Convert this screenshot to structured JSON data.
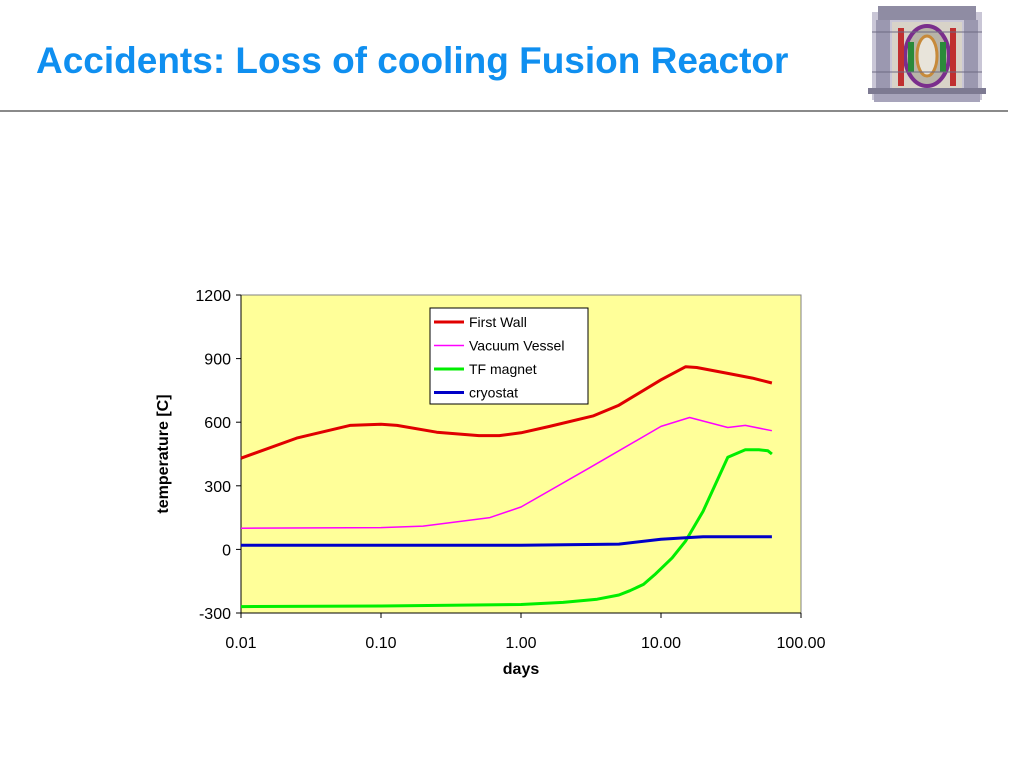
{
  "slide": {
    "title": "Accidents: Loss of cooling Fusion Reactor"
  },
  "image": {
    "icon": "fusion-reactor-cutaway-icon"
  },
  "colors": {
    "title": "#0f8ff0",
    "plot_background": "#ffff99",
    "rule": "#8a8a8a"
  },
  "chart_data": {
    "type": "line",
    "xlabel": "days",
    "ylabel": "temperature [C]",
    "x_scale": "log",
    "xlim": [
      0.01,
      100
    ],
    "ylim": [
      -300,
      1200
    ],
    "x_ticks": [
      0.01,
      0.1,
      1,
      10,
      100
    ],
    "x_tick_labels": [
      "0.01",
      "0.10",
      "1.00",
      "10.00",
      "100.00"
    ],
    "y_ticks": [
      -300,
      0,
      300,
      600,
      900,
      1200
    ],
    "y_tick_labels": [
      "-300",
      "0",
      "300",
      "600",
      "900",
      "1200"
    ],
    "grid": false,
    "legend_position": "top-center",
    "series": [
      {
        "name": "First Wall",
        "color": "#e00000",
        "x": [
          0.01,
          0.025,
          0.06,
          0.1,
          0.13,
          0.25,
          0.5,
          0.7,
          1.0,
          1.6,
          3.3,
          5.0,
          10.0,
          15.0,
          18.0,
          30.0,
          45.0,
          62.0
        ],
        "y": [
          430,
          525,
          585,
          590,
          585,
          553,
          537,
          537,
          550,
          580,
          630,
          680,
          800,
          862,
          858,
          830,
          808,
          785
        ]
      },
      {
        "name": "Vacuum Vessel",
        "color": "#ff00ff",
        "x": [
          0.01,
          0.1,
          0.2,
          0.6,
          1.0,
          3.0,
          10.0,
          16.0,
          30.0,
          40.0,
          62.0
        ],
        "y": [
          100,
          103,
          110,
          150,
          200,
          380,
          580,
          622,
          575,
          585,
          560
        ]
      },
      {
        "name": "TF magnet",
        "color": "#00ee00",
        "x": [
          0.01,
          0.1,
          1.0,
          2.0,
          3.5,
          5.0,
          6.0,
          7.5,
          9.0,
          12.0,
          15.0,
          20.0,
          30.0,
          40.0,
          50.0,
          58.0,
          62.0
        ],
        "y": [
          -270,
          -267,
          -260,
          -250,
          -235,
          -215,
          -195,
          -165,
          -120,
          -40,
          40,
          180,
          435,
          470,
          470,
          465,
          450
        ]
      },
      {
        "name": "cryostat",
        "color": "#0000c8",
        "x": [
          0.01,
          1.0,
          5.0,
          10.0,
          15.0,
          20.0,
          62.0
        ],
        "y": [
          20,
          20,
          25,
          48,
          55,
          60,
          60
        ]
      }
    ]
  }
}
